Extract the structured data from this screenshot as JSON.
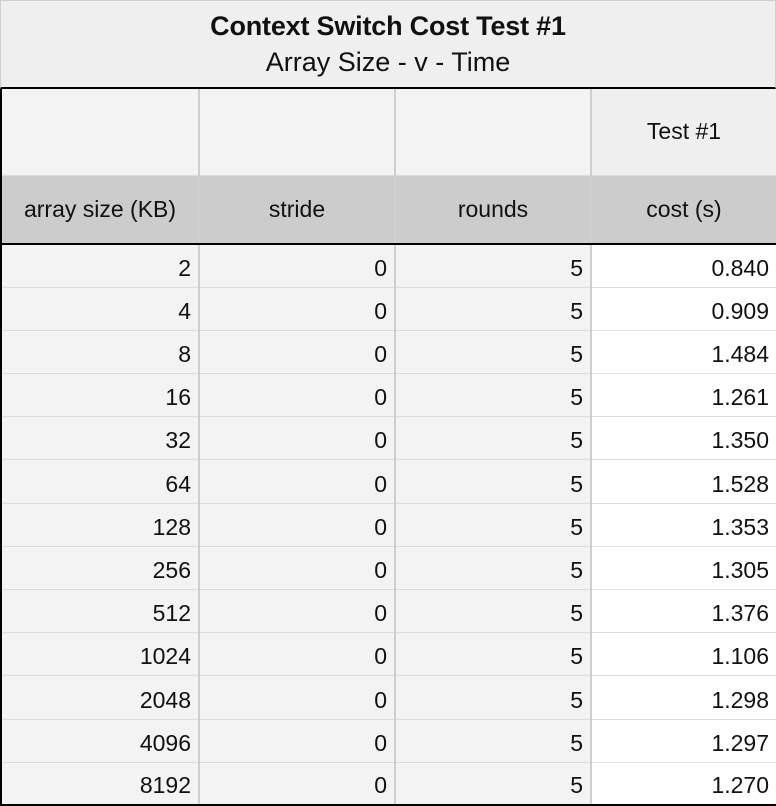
{
  "title": {
    "main": "Context Switch Cost Test #1",
    "sub": "Array Size - v - Time"
  },
  "group_header": {
    "test_label": "Test #1"
  },
  "columns": {
    "array_size": "array size (KB)",
    "stride": "stride",
    "rounds": "rounds",
    "cost": "cost (s)"
  },
  "rows": [
    {
      "size": "2",
      "stride": "0",
      "rounds": "5",
      "cost": "0.840"
    },
    {
      "size": "4",
      "stride": "0",
      "rounds": "5",
      "cost": "0.909"
    },
    {
      "size": "8",
      "stride": "0",
      "rounds": "5",
      "cost": "1.484"
    },
    {
      "size": "16",
      "stride": "0",
      "rounds": "5",
      "cost": "1.261"
    },
    {
      "size": "32",
      "stride": "0",
      "rounds": "5",
      "cost": "1.350"
    },
    {
      "size": "64",
      "stride": "0",
      "rounds": "5",
      "cost": "1.528"
    },
    {
      "size": "128",
      "stride": "0",
      "rounds": "5",
      "cost": "1.353"
    },
    {
      "size": "256",
      "stride": "0",
      "rounds": "5",
      "cost": "1.305"
    },
    {
      "size": "512",
      "stride": "0",
      "rounds": "5",
      "cost": "1.376"
    },
    {
      "size": "1024",
      "stride": "0",
      "rounds": "5",
      "cost": "1.106"
    },
    {
      "size": "2048",
      "stride": "0",
      "rounds": "5",
      "cost": "1.298"
    },
    {
      "size": "4096",
      "stride": "0",
      "rounds": "5",
      "cost": "1.297"
    },
    {
      "size": "8192",
      "stride": "0",
      "rounds": "5",
      "cost": "1.270"
    }
  ]
}
